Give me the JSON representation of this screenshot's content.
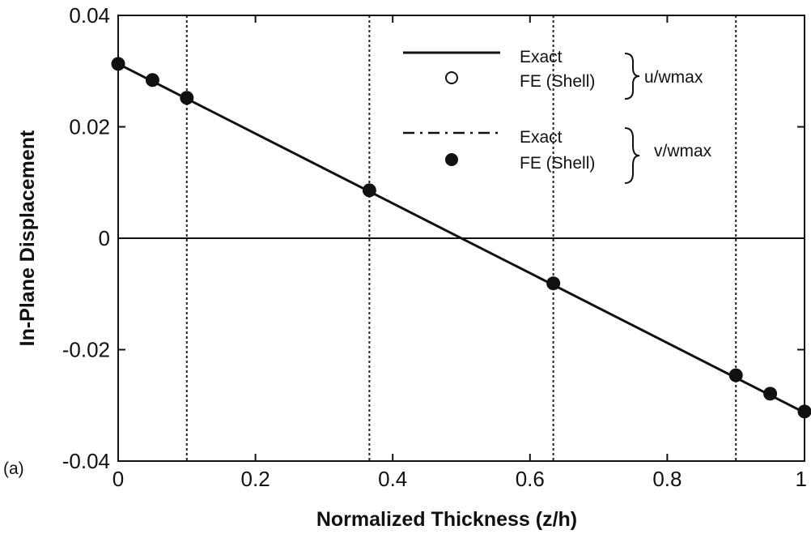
{
  "chart_data": {
    "type": "line",
    "title": "",
    "panel_label": "(a)",
    "xlabel": "Normalized Thickness (z/h)",
    "ylabel": "In-Plane Displacement",
    "xlim": [
      0,
      1
    ],
    "ylim": [
      -0.04,
      0.04
    ],
    "x_ticks": [
      0,
      0.2,
      0.4,
      0.6,
      0.8,
      1
    ],
    "x_tick_labels": [
      "0",
      "0.2",
      "0.4",
      "0.6",
      "0.8",
      "1"
    ],
    "y_ticks": [
      -0.04,
      -0.02,
      0,
      0.02,
      0.04
    ],
    "y_tick_labels": [
      "-0.04",
      "-0.02",
      "0",
      "0.02",
      "0.04"
    ],
    "vertical_reference_lines": [
      0.1,
      0.366,
      0.634,
      0.9
    ],
    "zero_line": true,
    "series": [
      {
        "style": "solid-line",
        "x": [
          0,
          1
        ],
        "y": [
          0.0313,
          -0.0313
        ]
      },
      {
        "style": "filled-marker",
        "x": [
          0,
          0.05,
          0.1,
          0.366,
          0.634,
          0.9,
          0.95,
          1.0
        ],
        "y": [
          0.0313,
          0.0284,
          0.0252,
          0.0086,
          -0.0081,
          -0.0246,
          -0.0279,
          -0.0311
        ]
      }
    ],
    "legend": {
      "position": "top-right",
      "groups": [
        {
          "label": "u/wmax",
          "entries": [
            {
              "symbol": "solid-line",
              "label": "Exact"
            },
            {
              "symbol": "open-circle",
              "label": "FE (Shell)"
            }
          ]
        },
        {
          "label": "v/wmax",
          "entries": [
            {
              "symbol": "dash-dot-line",
              "label": "Exact"
            },
            {
              "symbol": "filled-circle",
              "label": "FE (Shell)"
            }
          ]
        }
      ]
    }
  }
}
